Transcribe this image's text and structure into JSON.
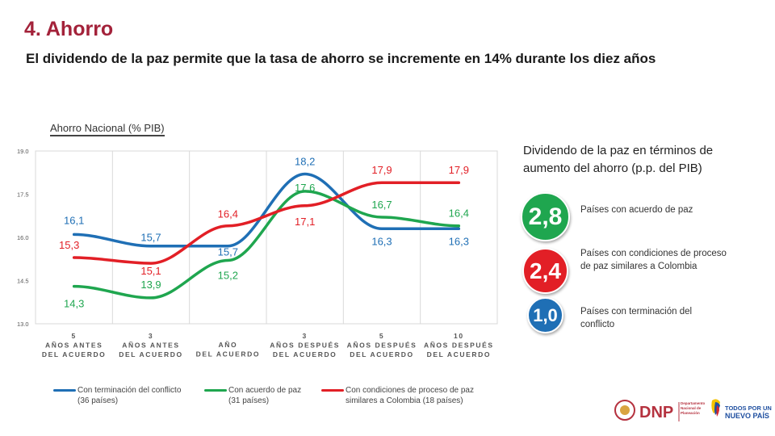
{
  "header": {
    "title": "4. Ahorro",
    "subtitle": "El dividendo de la paz permite que la tasa de ahorro se incremente en 14% durante los diez años"
  },
  "chart_data": {
    "type": "line",
    "title": "Ahorro Nacional (% PIB)",
    "categories": [
      [
        "5",
        "AÑOS ANTES",
        "DEL ACUERDO"
      ],
      [
        "3",
        "AÑOS ANTES",
        "DEL ACUERDO"
      ],
      [
        "AÑO",
        "DEL ACUERDO"
      ],
      [
        "3",
        "AÑOS DESPUÉS",
        "DEL ACUERDO"
      ],
      [
        "5",
        "AÑOS DESPUÉS",
        "DEL ACUERDO"
      ],
      [
        "10",
        "AÑOS DESPUÉS",
        "DEL ACUERDO"
      ]
    ],
    "ylim": [
      13.0,
      19.0
    ],
    "yticks": [
      "13.0",
      "14.5",
      "16.0",
      "17.5",
      "19.0"
    ],
    "grid": "vertical",
    "series": [
      {
        "name": "Con terminación del conflicto (36 países)",
        "color": "#1f6fb5",
        "values": [
          16.1,
          15.7,
          15.7,
          18.2,
          16.3,
          16.3
        ],
        "labels": [
          "16,1",
          "15,7",
          "15,7",
          "18,2",
          "16,3",
          "16,3"
        ]
      },
      {
        "name": "Con acuerdo de paz (31 países)",
        "color": "#1fa64f",
        "values": [
          14.3,
          13.9,
          15.2,
          17.6,
          16.7,
          16.4
        ],
        "labels": [
          "14,3",
          "13,9",
          "15,2",
          "17,6",
          "16,7",
          "16,4"
        ]
      },
      {
        "name": "Con condiciones de proceso de paz similares a Colombia (18 países)",
        "color": "#e21f26",
        "values": [
          15.3,
          15.1,
          16.4,
          17.1,
          17.9,
          17.9
        ],
        "labels": [
          "15,3",
          "15,1",
          "16,4",
          "17,1",
          "17,9",
          "17,9"
        ]
      }
    ],
    "legend": {
      "placement": "bottom",
      "items": [
        {
          "line1": "Con terminación del conflicto",
          "line2": "(36 países)",
          "color": "#1f6fb5"
        },
        {
          "line1": "Con acuerdo de paz",
          "line2": "(31 países)",
          "color": "#1fa64f"
        },
        {
          "line1": "Con condiciones de proceso de paz",
          "line2": "similares a Colombia (18 países)",
          "color": "#e21f26"
        }
      ]
    }
  },
  "dividend_panel": {
    "title": "Dividendo de la paz en términos de aumento del ahorro (p.p. del PIB)",
    "items": [
      {
        "value": "2,8",
        "label": "Países con acuerdo de paz",
        "color": "#1fa64f"
      },
      {
        "value": "2,4",
        "label": "Países con condiciones de proceso de paz similares a Colombia",
        "color": "#e21f26"
      },
      {
        "value": "1,0",
        "label": "Países con terminación del conflicto",
        "color": "#1f6fb5"
      }
    ]
  },
  "logos": {
    "dnp": "DNP",
    "dnp_sub": "Departamento Nacional de Planeación",
    "gov_line1": "TODOS POR UN",
    "gov_line2": "NUEVO PAÍS"
  }
}
